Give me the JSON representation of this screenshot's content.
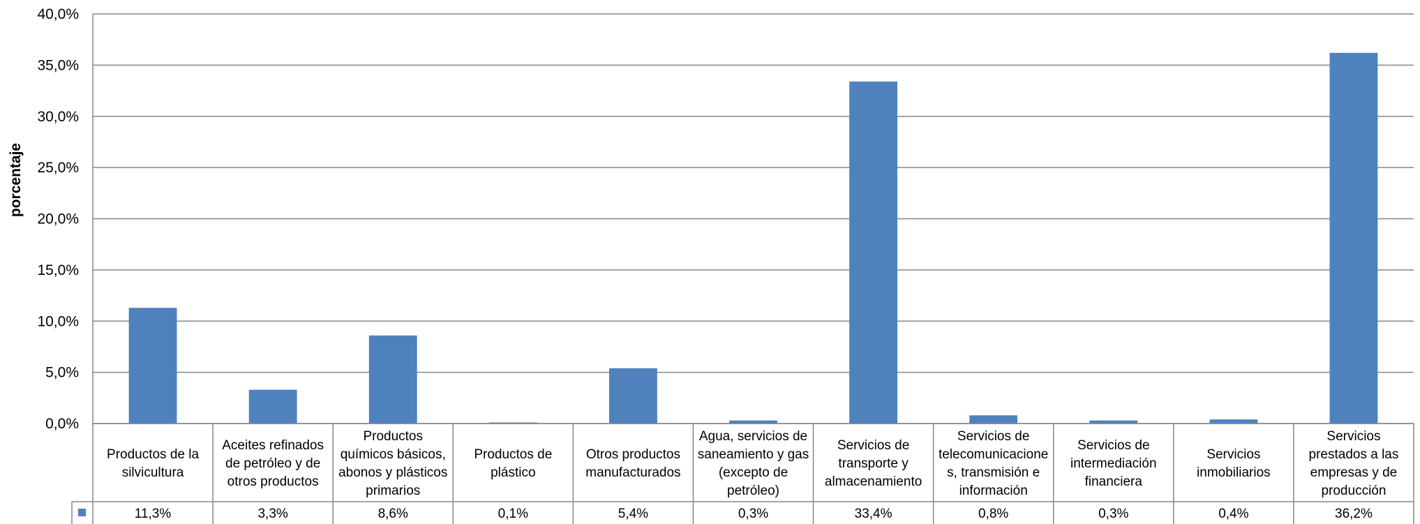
{
  "chart_data": {
    "type": "bar",
    "ylabel": "porcentaje",
    "ylim": [
      0,
      40
    ],
    "yticks": [
      "0,0%",
      "5,0%",
      "10,0%",
      "15,0%",
      "20,0%",
      "25,0%",
      "30,0%",
      "35,0%",
      "40,0%"
    ],
    "grid": true,
    "bar_color": "#4f81bd",
    "legend": "data table",
    "categories": [
      [
        "Productos de la",
        "silvicultura"
      ],
      [
        "Aceites refinados",
        "de petróleo y de",
        "otros productos"
      ],
      [
        "Productos",
        "químicos básicos,",
        "abonos y plásticos",
        "primarios"
      ],
      [
        "Productos de",
        "plástico"
      ],
      [
        "Otros productos",
        "manufacturados"
      ],
      [
        "Agua, servicios de",
        "saneamiento y gas",
        "(excepto de",
        "petróleo)"
      ],
      [
        "Servicios de",
        "transporte y",
        "almacenamiento"
      ],
      [
        "Servicios de",
        "telecomunicacione",
        "s, transmisión e",
        "información"
      ],
      [
        "Servicios de",
        "intermediación",
        "financiera"
      ],
      [
        "Servicios",
        "inmobiliarios"
      ],
      [
        "Servicios",
        "prestados a las",
        "empresas y de",
        "producción"
      ]
    ],
    "values": [
      11.3,
      3.3,
      8.6,
      0.1,
      5.4,
      0.3,
      33.4,
      0.8,
      0.3,
      0.4,
      36.2
    ],
    "value_labels": [
      "11,3%",
      "3,3%",
      "8,6%",
      "0,1%",
      "5,4%",
      "0,3%",
      "33,4%",
      "0,8%",
      "0,3%",
      "0,4%",
      "36,2%"
    ]
  }
}
